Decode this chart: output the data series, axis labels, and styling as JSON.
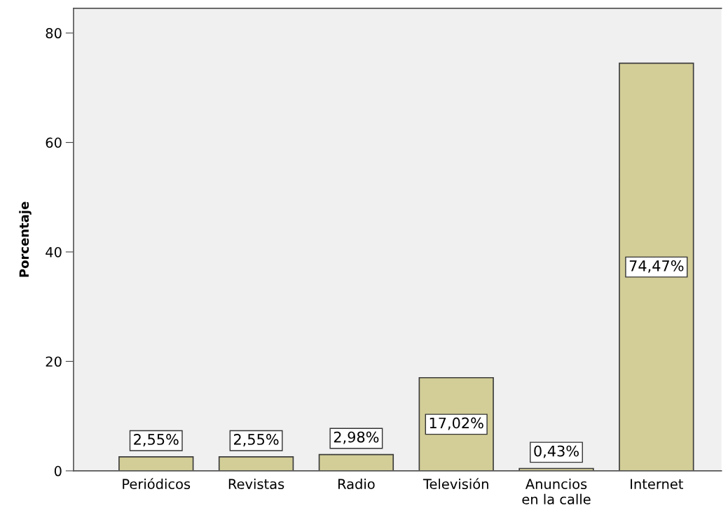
{
  "chart_data": {
    "type": "bar",
    "ylabel": "Porcentaje",
    "categories": [
      "Periódicos",
      "Revistas",
      "Radio",
      "Televisión",
      "Anuncios\nen la calle",
      "Internet"
    ],
    "values": [
      2.55,
      2.55,
      2.98,
      17.02,
      0.43,
      74.47
    ],
    "value_labels": [
      "2,55%",
      "2,55%",
      "2,98%",
      "17,02%",
      "0,43%",
      "74,47%"
    ],
    "color": "#d3ce97",
    "ylim": [
      0,
      84.5
    ],
    "yticks": [
      0,
      20,
      40,
      60,
      80
    ],
    "grid": false,
    "legend": false
  }
}
